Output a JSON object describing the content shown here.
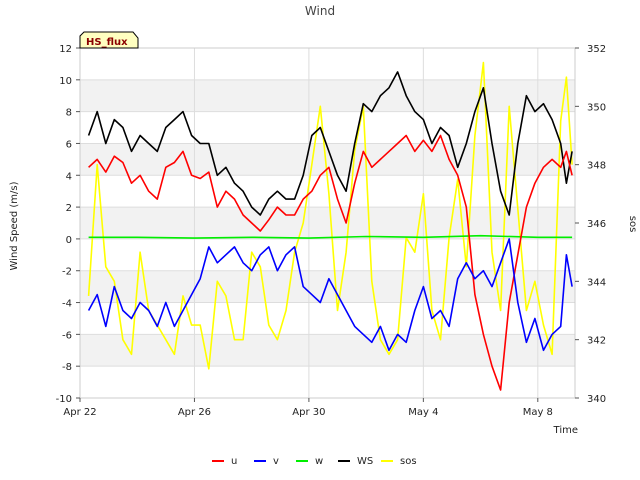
{
  "chart_data": {
    "type": "line",
    "title": "Wind",
    "badge": "HS_flux",
    "xlabel": "Time",
    "ylabel": "Wind Speed (m/s)",
    "y2label": "sos",
    "ylim": [
      -10,
      12
    ],
    "y2lim": [
      340,
      352
    ],
    "xlim_days": [
      0,
      17.3
    ],
    "yticks": [
      -10,
      -8,
      -6,
      -4,
      -2,
      0,
      2,
      4,
      6,
      8,
      10,
      12
    ],
    "y2ticks": [
      340,
      342,
      344,
      346,
      348,
      350,
      352
    ],
    "xticks": [
      {
        "day": 0,
        "label": "Apr 22"
      },
      {
        "day": 4,
        "label": "Apr 26"
      },
      {
        "day": 8,
        "label": "Apr 30"
      },
      {
        "day": 12,
        "label": "May 4"
      },
      {
        "day": 16,
        "label": "May 8"
      }
    ],
    "grid": true,
    "legend_position": "bottom-center",
    "series": [
      {
        "name": "u",
        "color": "#ff0000",
        "axis": "left",
        "x": [
          0.3,
          0.6,
          0.9,
          1.2,
          1.5,
          1.8,
          2.1,
          2.4,
          2.7,
          3.0,
          3.3,
          3.6,
          3.9,
          4.2,
          4.5,
          4.8,
          5.1,
          5.4,
          5.7,
          6.0,
          6.3,
          6.6,
          6.9,
          7.2,
          7.5,
          7.8,
          8.1,
          8.4,
          8.7,
          9.0,
          9.3,
          9.6,
          9.9,
          10.2,
          10.5,
          10.8,
          11.1,
          11.4,
          11.7,
          12.0,
          12.3,
          12.6,
          12.9,
          13.2,
          13.5,
          13.8,
          14.1,
          14.4,
          14.7,
          15.0,
          15.3,
          15.6,
          15.9,
          16.2,
          16.5,
          16.8,
          17.0,
          17.2
        ],
        "y": [
          4.5,
          5.0,
          4.2,
          5.2,
          4.8,
          3.5,
          4.0,
          3.0,
          2.5,
          4.5,
          4.8,
          5.5,
          4.0,
          3.8,
          4.2,
          2.0,
          3.0,
          2.5,
          1.5,
          1.0,
          0.5,
          1.2,
          2.0,
          1.5,
          1.5,
          2.5,
          3.0,
          4.0,
          4.5,
          2.5,
          1.0,
          3.5,
          5.5,
          4.5,
          5.0,
          5.5,
          6.0,
          6.5,
          5.5,
          6.2,
          5.5,
          6.5,
          5.0,
          4.0,
          2.0,
          -3.5,
          -6.0,
          -8.0,
          -9.5,
          -4.0,
          -1.0,
          2.0,
          3.5,
          4.5,
          5.0,
          4.5,
          5.5,
          4.0
        ]
      },
      {
        "name": "v",
        "color": "#0000ff",
        "axis": "left",
        "x": [
          0.3,
          0.6,
          0.9,
          1.2,
          1.5,
          1.8,
          2.1,
          2.4,
          2.7,
          3.0,
          3.3,
          3.6,
          3.9,
          4.2,
          4.5,
          4.8,
          5.1,
          5.4,
          5.7,
          6.0,
          6.3,
          6.6,
          6.9,
          7.2,
          7.5,
          7.8,
          8.1,
          8.4,
          8.7,
          9.0,
          9.3,
          9.6,
          9.9,
          10.2,
          10.5,
          10.8,
          11.1,
          11.4,
          11.7,
          12.0,
          12.3,
          12.6,
          12.9,
          13.2,
          13.5,
          13.8,
          14.1,
          14.4,
          14.7,
          15.0,
          15.3,
          15.6,
          15.9,
          16.2,
          16.5,
          16.8,
          17.0,
          17.2
        ],
        "y": [
          -4.5,
          -3.5,
          -5.5,
          -3.0,
          -4.5,
          -5.0,
          -4.0,
          -4.5,
          -5.5,
          -4.0,
          -5.5,
          -4.5,
          -3.5,
          -2.5,
          -0.5,
          -1.5,
          -1.0,
          -0.5,
          -1.5,
          -2.0,
          -1.0,
          -0.5,
          -2.0,
          -1.0,
          -0.5,
          -3.0,
          -3.5,
          -4.0,
          -2.5,
          -3.5,
          -4.5,
          -5.5,
          -6.0,
          -6.5,
          -5.5,
          -7.0,
          -6.0,
          -6.5,
          -4.5,
          -3.0,
          -5.0,
          -4.5,
          -5.5,
          -2.5,
          -1.5,
          -2.5,
          -2.0,
          -3.0,
          -1.5,
          0.0,
          -4.0,
          -6.5,
          -5.0,
          -7.0,
          -6.0,
          -5.5,
          -1.0,
          -3.0
        ]
      },
      {
        "name": "w",
        "color": "#00ee00",
        "axis": "left",
        "x": [
          0.3,
          2.0,
          4.0,
          6.0,
          8.0,
          10.0,
          12.0,
          14.0,
          16.0,
          17.2
        ],
        "y": [
          0.1,
          0.1,
          0.05,
          0.1,
          0.05,
          0.15,
          0.1,
          0.2,
          0.1,
          0.1
        ]
      },
      {
        "name": "WS",
        "color": "#000000",
        "axis": "left",
        "x": [
          0.3,
          0.6,
          0.9,
          1.2,
          1.5,
          1.8,
          2.1,
          2.4,
          2.7,
          3.0,
          3.3,
          3.6,
          3.9,
          4.2,
          4.5,
          4.8,
          5.1,
          5.4,
          5.7,
          6.0,
          6.3,
          6.6,
          6.9,
          7.2,
          7.5,
          7.8,
          8.1,
          8.4,
          8.7,
          9.0,
          9.3,
          9.6,
          9.9,
          10.2,
          10.5,
          10.8,
          11.1,
          11.4,
          11.7,
          12.0,
          12.3,
          12.6,
          12.9,
          13.2,
          13.5,
          13.8,
          14.1,
          14.4,
          14.7,
          15.0,
          15.3,
          15.6,
          15.9,
          16.2,
          16.5,
          16.8,
          17.0,
          17.2
        ],
        "y": [
          6.5,
          8.0,
          6.0,
          7.5,
          7.0,
          5.5,
          6.5,
          6.0,
          5.5,
          7.0,
          7.5,
          8.0,
          6.5,
          6.0,
          6.0,
          4.0,
          4.5,
          3.5,
          3.0,
          2.0,
          1.5,
          2.5,
          3.0,
          2.5,
          2.5,
          4.0,
          6.5,
          7.0,
          5.5,
          4.0,
          3.0,
          6.0,
          8.5,
          8.0,
          9.0,
          9.5,
          10.5,
          9.0,
          8.0,
          7.5,
          6.0,
          7.0,
          6.5,
          4.5,
          6.0,
          8.0,
          9.5,
          6.0,
          3.0,
          1.5,
          6.0,
          9.0,
          8.0,
          8.5,
          7.5,
          6.0,
          3.5,
          5.5
        ]
      },
      {
        "name": "sos",
        "color": "#ffff00",
        "axis": "right",
        "x": [
          0.3,
          0.6,
          0.9,
          1.2,
          1.5,
          1.8,
          2.1,
          2.4,
          2.7,
          3.0,
          3.3,
          3.6,
          3.9,
          4.2,
          4.5,
          4.8,
          5.1,
          5.4,
          5.7,
          6.0,
          6.3,
          6.6,
          6.9,
          7.2,
          7.5,
          7.8,
          8.1,
          8.4,
          8.7,
          9.0,
          9.3,
          9.6,
          9.9,
          10.2,
          10.5,
          10.8,
          11.1,
          11.4,
          11.7,
          12.0,
          12.3,
          12.6,
          12.9,
          13.2,
          13.5,
          13.8,
          14.1,
          14.4,
          14.7,
          15.0,
          15.3,
          15.6,
          15.9,
          16.2,
          16.5,
          16.8,
          17.0,
          17.2
        ],
        "y": [
          343.5,
          348.0,
          344.5,
          344.0,
          342.0,
          341.5,
          345.0,
          343.0,
          342.5,
          342.0,
          341.5,
          343.5,
          342.5,
          342.5,
          341.0,
          344.0,
          343.5,
          342.0,
          342.0,
          345.0,
          344.5,
          342.5,
          342.0,
          343.0,
          345.0,
          346.0,
          348.0,
          350.0,
          347.0,
          343.0,
          345.0,
          348.5,
          350.0,
          344.0,
          342.0,
          341.5,
          342.0,
          345.5,
          345.0,
          347.0,
          343.0,
          342.0,
          345.5,
          347.5,
          344.5,
          349.0,
          351.5,
          345.0,
          343.0,
          350.0,
          346.5,
          343.0,
          344.0,
          342.5,
          341.5,
          349.5,
          351.0,
          348.0
        ]
      }
    ]
  }
}
